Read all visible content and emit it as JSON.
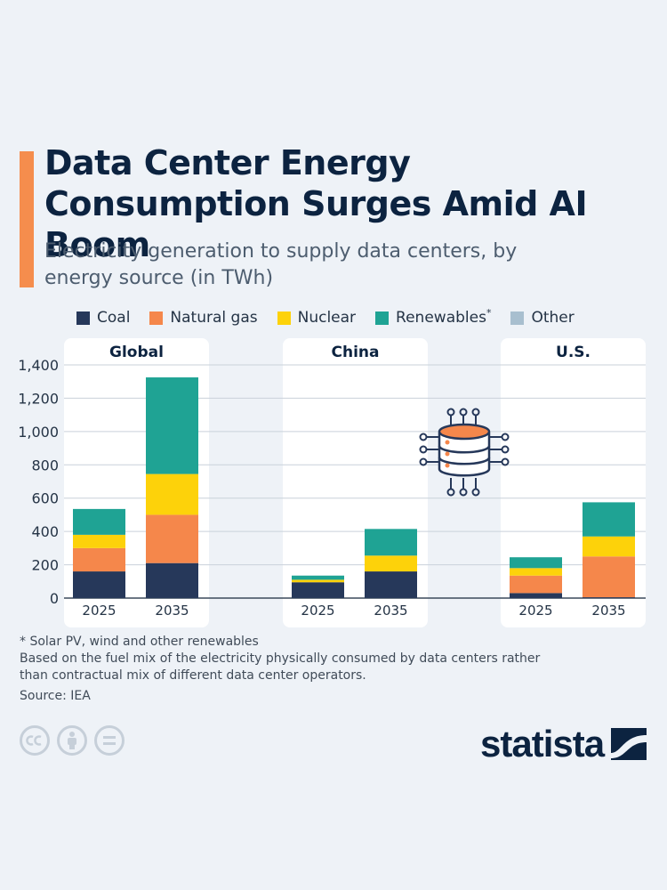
{
  "header": {
    "title": "Data Center Energy Consumption Surges Amid AI Boom",
    "subtitle": "Electricity generation to supply data centers, by energy source (in TWh)"
  },
  "legend": [
    {
      "label": "Coal",
      "mark": "",
      "color": "#26385a"
    },
    {
      "label": "Natural gas",
      "mark": "",
      "color": "#f5874b"
    },
    {
      "label": "Nuclear",
      "mark": "",
      "color": "#fdd20a"
    },
    {
      "label": "Renewables",
      "mark": "*",
      "color": "#1fa394"
    },
    {
      "label": "Other",
      "mark": "",
      "color": "#a8bfcf"
    }
  ],
  "chart_data": {
    "type": "bar",
    "stacked": true,
    "title": "Data Center Energy Consumption Surges Amid AI Boom",
    "ylabel": "TWh",
    "ylim": [
      0,
      1400
    ],
    "yticks": [
      0,
      200,
      400,
      600,
      800,
      1000,
      1200,
      1400
    ],
    "ytick_labels": [
      "0",
      "200",
      "400",
      "600",
      "800",
      "1,000",
      "1,200",
      "1,400"
    ],
    "panels": [
      "Global",
      "China",
      "U.S."
    ],
    "categories": [
      "2025",
      "2035"
    ],
    "series": [
      {
        "name": "Coal",
        "color": "#26385a",
        "values": {
          "Global": [
            160,
            210
          ],
          "China": [
            95,
            160
          ],
          "U.S.": [
            30,
            5
          ]
        }
      },
      {
        "name": "Natural gas",
        "color": "#f5874b",
        "values": {
          "Global": [
            140,
            290
          ],
          "China": [
            0,
            0
          ],
          "U.S.": [
            105,
            245
          ]
        }
      },
      {
        "name": "Nuclear",
        "color": "#fdd20a",
        "values": {
          "Global": [
            80,
            245
          ],
          "China": [
            15,
            95
          ],
          "U.S.": [
            45,
            120
          ]
        }
      },
      {
        "name": "Renewables",
        "color": "#1fa394",
        "values": {
          "Global": [
            155,
            580
          ],
          "China": [
            25,
            160
          ],
          "U.S.": [
            65,
            205
          ]
        }
      },
      {
        "name": "Other",
        "color": "#a8bfcf",
        "values": {
          "Global": [
            0,
            0
          ],
          "China": [
            0,
            0
          ],
          "U.S.": [
            0,
            0
          ]
        }
      }
    ]
  },
  "footnotes": {
    "asterisk": "* Solar PV, wind and other renewables",
    "basis": "Based on the fuel mix of the electricity physically consumed by data centers rather than contractual mix of different data center operators.",
    "source": "Source: IEA"
  },
  "brand": {
    "name": "statista"
  },
  "icons": [
    "data-center-server-icon",
    "creative-commons-icon",
    "attribution-icon",
    "no-derivatives-icon",
    "statista-logo-icon"
  ]
}
